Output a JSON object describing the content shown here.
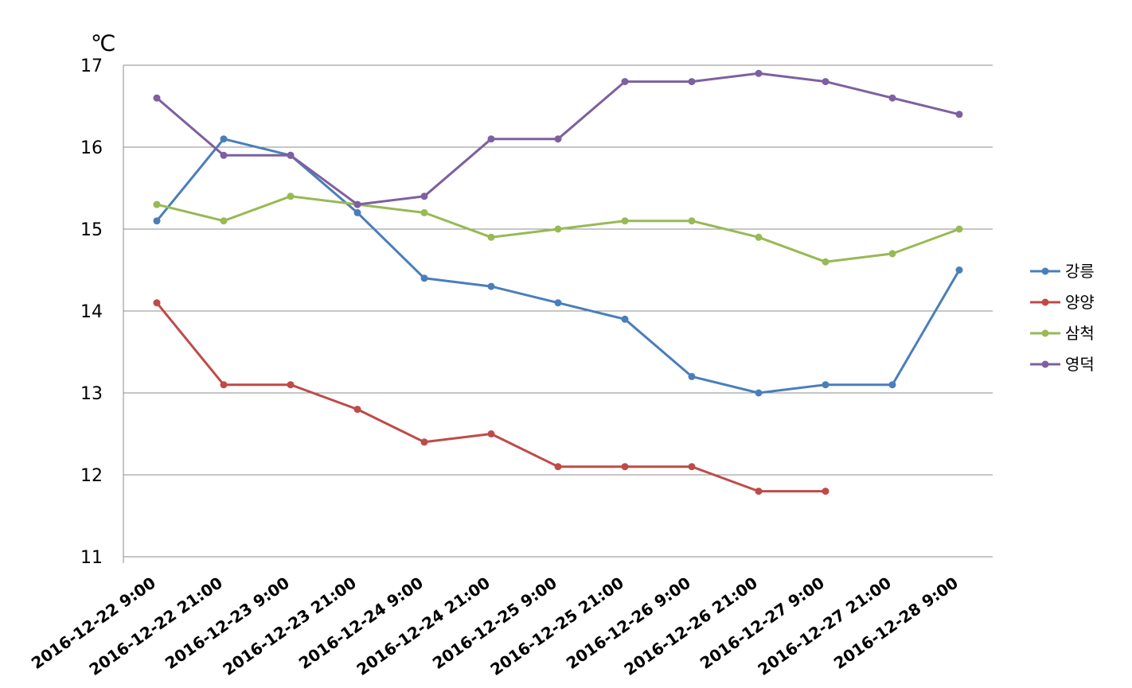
{
  "chart_data": {
    "type": "line",
    "ylabel": "℃",
    "ylim": [
      11,
      17
    ],
    "yticks": [
      "11",
      "12",
      "13",
      "14",
      "15",
      "16",
      "17"
    ],
    "grid": true,
    "legend_position": "right",
    "categories": [
      "2016-12-22 9:00",
      "2016-12-22 21:00",
      "2016-12-23 9:00",
      "2016-12-23 21:00",
      "2016-12-24 9:00",
      "2016-12-24 21:00",
      "2016-12-25 9:00",
      "2016-12-25 21:00",
      "2016-12-26 9:00",
      "2016-12-26 21:00",
      "2016-12-27 9:00",
      "2016-12-27 21:00",
      "2016-12-28 9:00"
    ],
    "series": [
      {
        "name": "강릉",
        "color": "#4A7EBB",
        "values": [
          15.1,
          16.1,
          15.9,
          15.2,
          14.4,
          14.3,
          14.1,
          13.9,
          13.2,
          13.0,
          13.1,
          13.1,
          14.5
        ]
      },
      {
        "name": "양양",
        "color": "#BE4B48",
        "values": [
          14.1,
          13.1,
          13.1,
          12.8,
          12.4,
          12.5,
          12.1,
          12.1,
          12.1,
          11.8,
          11.8,
          null,
          null
        ]
      },
      {
        "name": "삼척",
        "color": "#98B954",
        "values": [
          15.3,
          15.1,
          15.4,
          15.3,
          15.2,
          14.9,
          15.0,
          15.1,
          15.1,
          14.9,
          14.6,
          14.7,
          15.0
        ]
      },
      {
        "name": "영덕",
        "color": "#7D60A0",
        "values": [
          16.6,
          15.9,
          15.9,
          15.3,
          15.4,
          16.1,
          16.1,
          16.8,
          16.8,
          16.9,
          16.8,
          16.6,
          16.4
        ]
      }
    ]
  }
}
